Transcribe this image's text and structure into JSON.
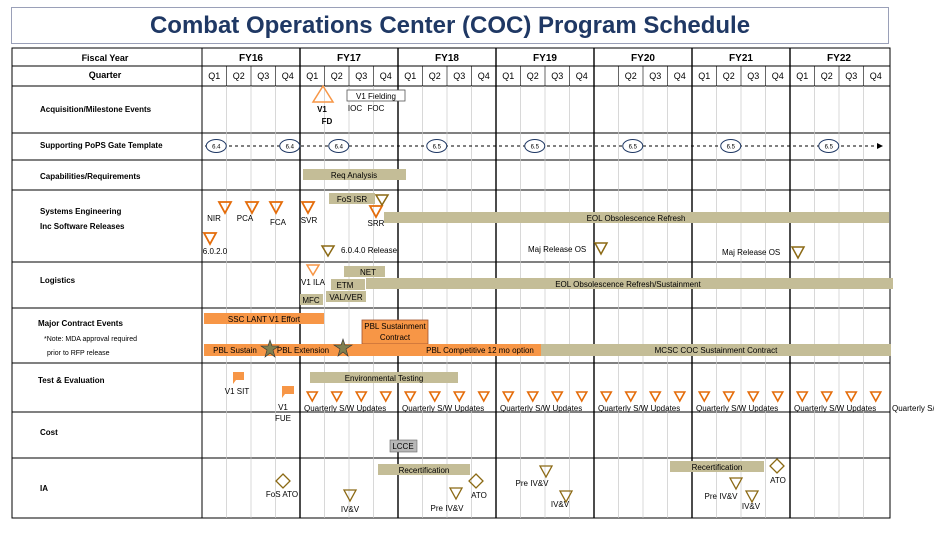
{
  "title": "Combat Operations Center (COC) Program Schedule",
  "header": {
    "fiscal_year_label": "Fiscal Year",
    "quarter_label": "Quarter",
    "fiscal_years": [
      "FY16",
      "FY17",
      "FY18",
      "FY19",
      "FY20",
      "FY21",
      "FY22"
    ],
    "quarter_rows": [
      [
        "Q1",
        "Q2",
        "Q3",
        "Q4"
      ],
      [
        "Q1",
        "Q2",
        "Q3",
        "Q4"
      ],
      [
        "Q1",
        "Q2",
        "Q3",
        "Q4"
      ],
      [
        "Q1",
        "Q2",
        "Q3",
        "Q4"
      ],
      [
        "",
        "Q2",
        "Q3",
        "Q4"
      ],
      [
        "Q1",
        "Q2",
        "Q3",
        "Q4"
      ],
      [
        "Q1",
        "Q2",
        "Q3",
        "Q4"
      ]
    ]
  },
  "rows": [
    {
      "label": "Acquisition/Milestone  Events"
    },
    {
      "label": "Supporting PoPS Gate Template"
    },
    {
      "label": "Capabilities/Requirements"
    },
    {
      "label": "Systems  Engineering",
      "label2": "Inc  Software  Releases"
    },
    {
      "label": "Logistics"
    },
    {
      "label": "Major Contract Events",
      "note1": "*Note:  MDA approval  required",
      "note2": "prior to RFP release"
    },
    {
      "label": "Test & Evaluation"
    },
    {
      "label": "Cost"
    },
    {
      "label": "IA"
    }
  ],
  "colors": {
    "title": "#1f3864",
    "tan_bar": "#c4bd97",
    "orange": "#f79646",
    "orange_dark": "#e46c0a",
    "olive": "#8b6914",
    "grid": "#c8c8c8"
  },
  "chart_data": {
    "type": "gantt",
    "title": "Combat Operations Center (COC) Program Schedule",
    "time_axis": {
      "start": "FY16 Q1",
      "end": "FY22 Q4",
      "units": "quarters"
    },
    "gates": [
      {
        "label": "6.4",
        "at": "FY16 Q1"
      },
      {
        "label": "6.4",
        "at": "FY16 Q4"
      },
      {
        "label": "6.4",
        "at": "FY17 Q2"
      },
      {
        "label": "6.5",
        "at": "FY18 Q2"
      },
      {
        "label": "6.5",
        "at": "FY19 Q2"
      },
      {
        "label": "6.5",
        "at": "FY20 Q2"
      },
      {
        "label": "6.5",
        "at": "FY21 Q2"
      },
      {
        "label": "6.5",
        "at": "FY22 Q2"
      }
    ],
    "milestones": {
      "v1_fd": [
        "V1",
        "FD"
      ],
      "v1_fielding": "V1 Fielding",
      "ioc": "IOC",
      "foc": "FOC",
      "nir": "NIR",
      "pca": "PCA",
      "fca": "FCA",
      "svr": "SVR",
      "srr": "SRR",
      "v6020": "6.0.2.0",
      "release_6040": "6.0.4.0 Release",
      "maj_release_fy19": "Maj Release OS",
      "maj_release_fy21": "Maj Release OS",
      "v1_ila": "V1 ILA",
      "v1_sit": "V1 SIT",
      "v1_fue": [
        "V1",
        "FUE"
      ],
      "fos_ato": "FoS ATO",
      "ato1": "ATO",
      "ato2": "ATO",
      "ivv1": "IV&V",
      "pre_ivv1": "Pre IV&V",
      "pre_ivv2": "Pre IV&V",
      "ivv2": "IV&V",
      "pre_ivv3": "Pre IV&V",
      "ivv3": "IV&V"
    },
    "bars": {
      "req_analysis": "Req Analysis",
      "fos_isr": "FoS ISR",
      "eol_refresh": "EOL Obsolescence Refresh",
      "net": "NET",
      "etm": "ETM",
      "val_ver": "VAL/VER",
      "mfc": "MFC",
      "eol_sustainment": "EOL Obsolescence Refresh/Sustainment",
      "ssc_lant": "SSC LANT V1 Effort",
      "pbl_sustainment_contract": [
        "PBL Sustainment",
        "Contract"
      ],
      "pbl_sustain": "PBL Sustain",
      "pbl_extension": "PBL  Extension",
      "pbl_competitive": "PBL  Competitive 12 mo option",
      "mcsc_coc": "MCSC COC Sustainment Contract",
      "environmental_testing": "Environmental Testing",
      "lcce": "LCCE",
      "recert1": "Recertification",
      "recert2": "Recertification"
    },
    "quarterly_labels": [
      "Quarterly S/W Updates",
      "Quarterly S/W Updates",
      "Quarterly S/W Updates",
      "Quarterly S/W Updates",
      "Quarterly S/W Updates",
      "Quarterly S/W Updates",
      "Quarterly S/W Updates"
    ]
  }
}
